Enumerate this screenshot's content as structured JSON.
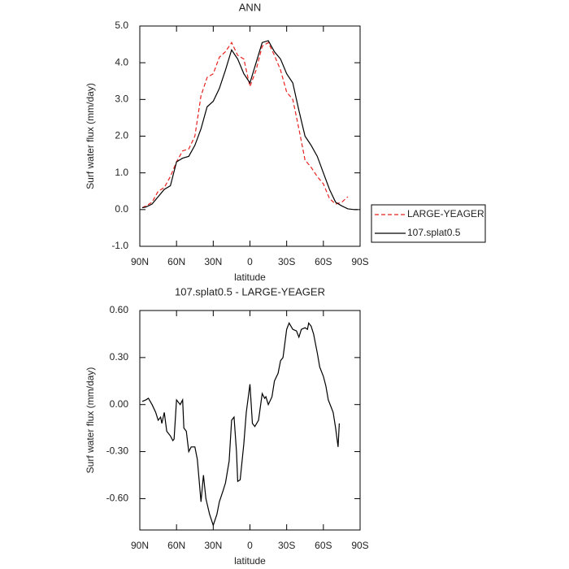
{
  "chart_data": [
    {
      "type": "line",
      "title": "ANN",
      "x_label": "latitude",
      "y_label": "Surf water flux (mm/day)",
      "x": [
        88,
        85,
        80,
        75,
        70,
        65,
        60,
        55,
        50,
        45,
        40,
        35,
        30,
        25,
        20,
        15,
        10,
        5,
        0,
        -5,
        -10,
        -15,
        -20,
        -25,
        -30,
        -35,
        -40,
        -45,
        -50,
        -55,
        -60,
        -65,
        -70,
        -75,
        -80,
        -85,
        -88
      ],
      "series": [
        {
          "name": "LARGE-YEAGER",
          "color": "#e8211e",
          "dashed": true,
          "values": [
            0.05,
            0.1,
            0.2,
            0.5,
            0.6,
            0.9,
            1.3,
            1.6,
            1.65,
            2.0,
            3.1,
            3.6,
            3.7,
            4.15,
            4.3,
            4.55,
            4.2,
            4.1,
            3.35,
            3.8,
            4.45,
            4.55,
            4.2,
            3.8,
            3.2,
            3.0,
            2.2,
            1.35,
            1.15,
            0.9,
            0.7,
            0.3,
            0.15,
            0.2,
            0.35,
            null,
            null
          ]
        },
        {
          "name": "107.splat0.5",
          "color": "#000000",
          "dashed": false,
          "values": [
            0.05,
            0.07,
            0.15,
            0.35,
            0.55,
            0.65,
            1.3,
            1.4,
            1.45,
            1.75,
            2.2,
            2.8,
            2.95,
            3.3,
            3.8,
            4.35,
            4.1,
            3.7,
            3.45,
            4.0,
            4.55,
            4.6,
            4.3,
            4.1,
            3.7,
            3.45,
            2.7,
            2.0,
            1.75,
            1.45,
            1.0,
            0.55,
            0.2,
            0.1,
            0.02,
            0.0,
            0.0
          ]
        }
      ],
      "xlim": [
        90,
        -90
      ],
      "xticks": [
        {
          "value": 90,
          "label": "90N"
        },
        {
          "value": 60,
          "label": "60N"
        },
        {
          "value": 30,
          "label": "30N"
        },
        0,
        {
          "value": -30,
          "label": "30S"
        },
        {
          "value": -60,
          "label": "60S"
        },
        {
          "value": -90,
          "label": "90S"
        }
      ],
      "ylim": [
        -1,
        5
      ],
      "yticks": [
        {
          "value": -1,
          "label": "-1.0"
        },
        {
          "value": 0,
          "label": "0.0"
        },
        {
          "value": 1,
          "label": "1.0"
        },
        {
          "value": 2,
          "label": "2.0"
        },
        {
          "value": 3,
          "label": "3.0"
        },
        {
          "value": 4,
          "label": "4.0"
        },
        {
          "value": 5,
          "label": "5.0"
        }
      ],
      "grid": false,
      "legend": "right"
    },
    {
      "type": "line",
      "title": "107.splat0.5 - LARGE-YEAGER",
      "x_label": "latitude",
      "y_label": "Surf water flux (mm/day)",
      "x": [
        88,
        85,
        83,
        80,
        77,
        75,
        73,
        72,
        70,
        68,
        65,
        63,
        62,
        60,
        57,
        55,
        54,
        52,
        50,
        48,
        45,
        43,
        40,
        38,
        36,
        33,
        30,
        27,
        25,
        22,
        20,
        17,
        15,
        13,
        11,
        10,
        8,
        5,
        3,
        0,
        -2,
        -4,
        -7,
        -10,
        -12,
        -13,
        -15,
        -18,
        -20,
        -23,
        -25,
        -27,
        -30,
        -32,
        -35,
        -38,
        -40,
        -42,
        -45,
        -47,
        -48,
        -50,
        -52,
        -55,
        -57,
        -60,
        -62,
        -64,
        -66,
        -68,
        -70,
        -72,
        -73
      ],
      "series": [
        {
          "name": "107.splat0.5 - LARGE-YEAGER",
          "color": "#000000",
          "dashed": false,
          "values": [
            0.02,
            0.03,
            0.04,
            0.0,
            -0.05,
            -0.1,
            -0.08,
            -0.12,
            -0.05,
            -0.17,
            -0.2,
            -0.23,
            -0.22,
            0.03,
            0.0,
            0.03,
            -0.15,
            -0.17,
            -0.3,
            -0.27,
            -0.27,
            -0.35,
            -0.62,
            -0.45,
            -0.6,
            -0.7,
            -0.77,
            -0.7,
            -0.62,
            -0.55,
            -0.5,
            -0.36,
            -0.1,
            -0.08,
            -0.3,
            -0.49,
            -0.48,
            -0.25,
            -0.05,
            0.13,
            -0.12,
            -0.14,
            -0.1,
            0.07,
            0.04,
            0.05,
            0.0,
            0.05,
            0.15,
            0.2,
            0.28,
            0.3,
            0.48,
            0.52,
            0.48,
            0.47,
            0.43,
            0.48,
            0.49,
            0.48,
            0.52,
            0.5,
            0.45,
            0.33,
            0.24,
            0.18,
            0.12,
            0.03,
            -0.01,
            -0.05,
            -0.15,
            -0.27,
            -0.12
          ]
        }
      ],
      "xlim": [
        90,
        -90
      ],
      "xticks": [
        {
          "value": 90,
          "label": "90N"
        },
        {
          "value": 60,
          "label": "60N"
        },
        {
          "value": 30,
          "label": "30N"
        },
        0,
        {
          "value": -30,
          "label": "30S"
        },
        {
          "value": -60,
          "label": "60S"
        },
        {
          "value": -90,
          "label": "90S"
        }
      ],
      "ylim": [
        -0.8,
        0.6
      ],
      "yticks": [
        {
          "value": -0.6,
          "label": "-0.60"
        },
        {
          "value": -0.3,
          "label": "-0.30"
        },
        {
          "value": 0,
          "label": "0.00"
        },
        {
          "value": 0.3,
          "label": "0.30"
        },
        {
          "value": 0.6,
          "label": "0.60"
        }
      ],
      "grid": false
    }
  ]
}
